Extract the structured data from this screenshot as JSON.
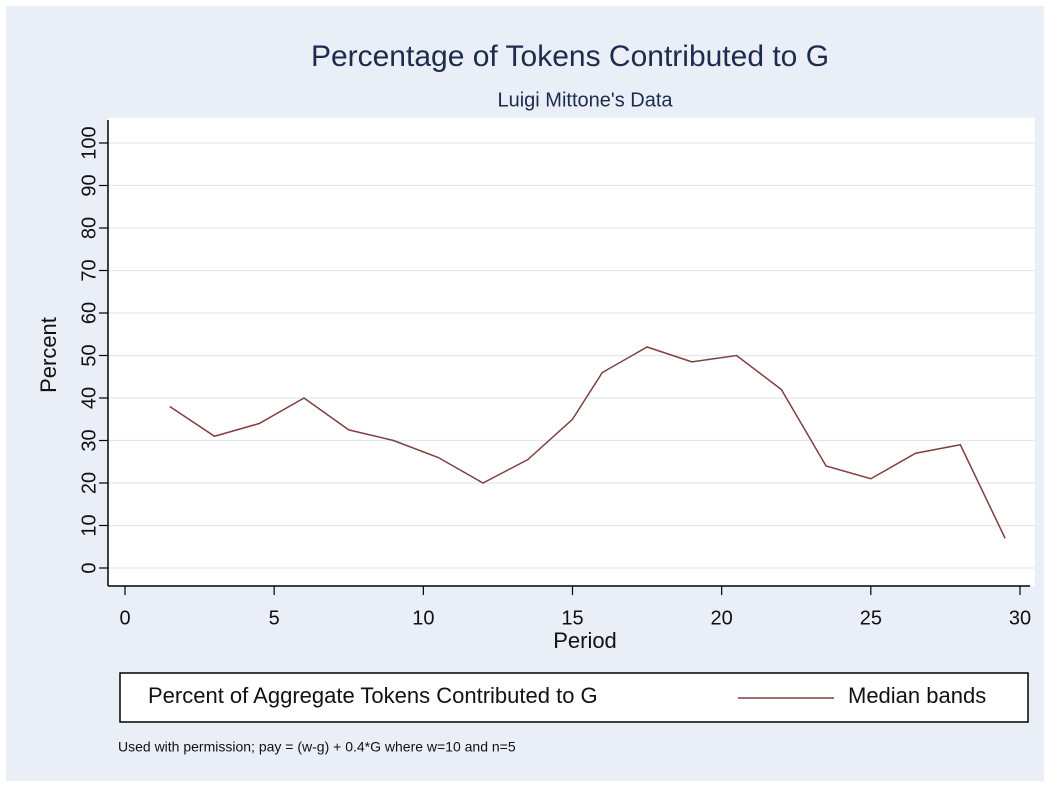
{
  "chart_data": {
    "type": "line",
    "title": "Percentage of Tokens Contributed to G",
    "subtitle": "Luigi Mittone's Data",
    "x_label": "Period",
    "y_label": "Percent",
    "x": [
      1.5,
      3,
      4.5,
      6,
      7.5,
      9,
      10.5,
      12,
      13.5,
      15,
      16,
      17.5,
      19,
      20.5,
      22,
      23.5,
      25,
      26.5,
      28,
      29.5
    ],
    "series": [
      {
        "name": "Median bands",
        "color": "#7f3f3f",
        "values": [
          38,
          31,
          34,
          40,
          32.5,
          30,
          26,
          20,
          25.5,
          35,
          46,
          52,
          48.5,
          50,
          42,
          24,
          21,
          27,
          29,
          7
        ]
      }
    ],
    "legend_label": "Percent of Aggregate Tokens Contributed to G",
    "note": "Used with permission; pay = (w-g) + 0.4*G where w=10 and n=5",
    "xlim": [
      0,
      30
    ],
    "xticks": [
      0,
      5,
      10,
      15,
      20,
      25,
      30
    ],
    "ylim": [
      0,
      100
    ],
    "yticks": [
      0,
      10,
      20,
      30,
      40,
      50,
      60,
      70,
      80,
      90,
      100
    ],
    "grid": true
  }
}
